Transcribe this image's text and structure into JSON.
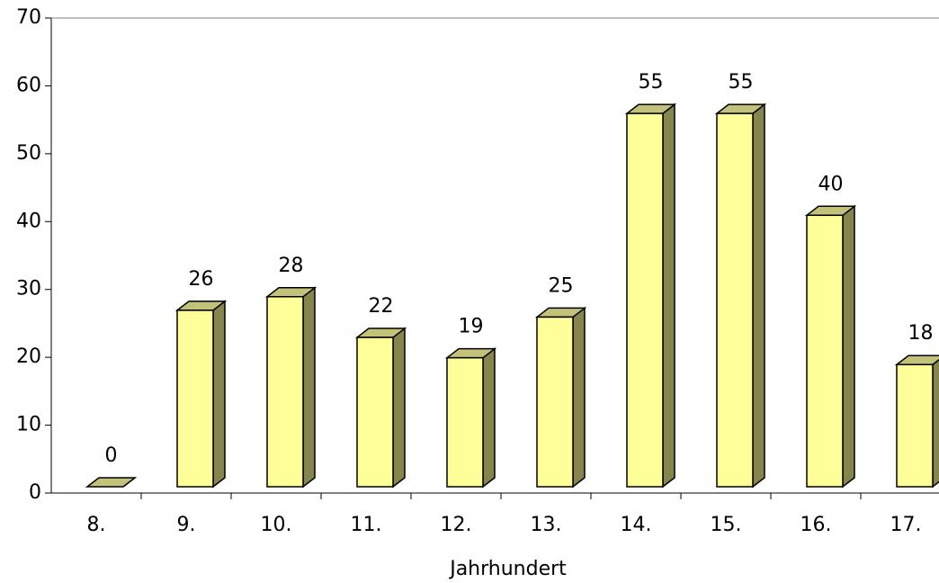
{
  "chart_data": {
    "type": "bar3d",
    "x_label": "Jahrhundert",
    "categories": [
      "8.",
      "9.",
      "10.",
      "11.",
      "12.",
      "13.",
      "14.",
      "15.",
      "16.",
      "17."
    ],
    "values": [
      0,
      26,
      28,
      22,
      19,
      25,
      55,
      55,
      40,
      18
    ],
    "color": "#ffff99",
    "side_color": "#85854d",
    "top_color": "#c2c27a",
    "ylim": [
      0,
      70
    ],
    "yticks": [
      0,
      10,
      20,
      30,
      40,
      50,
      60,
      70
    ]
  }
}
